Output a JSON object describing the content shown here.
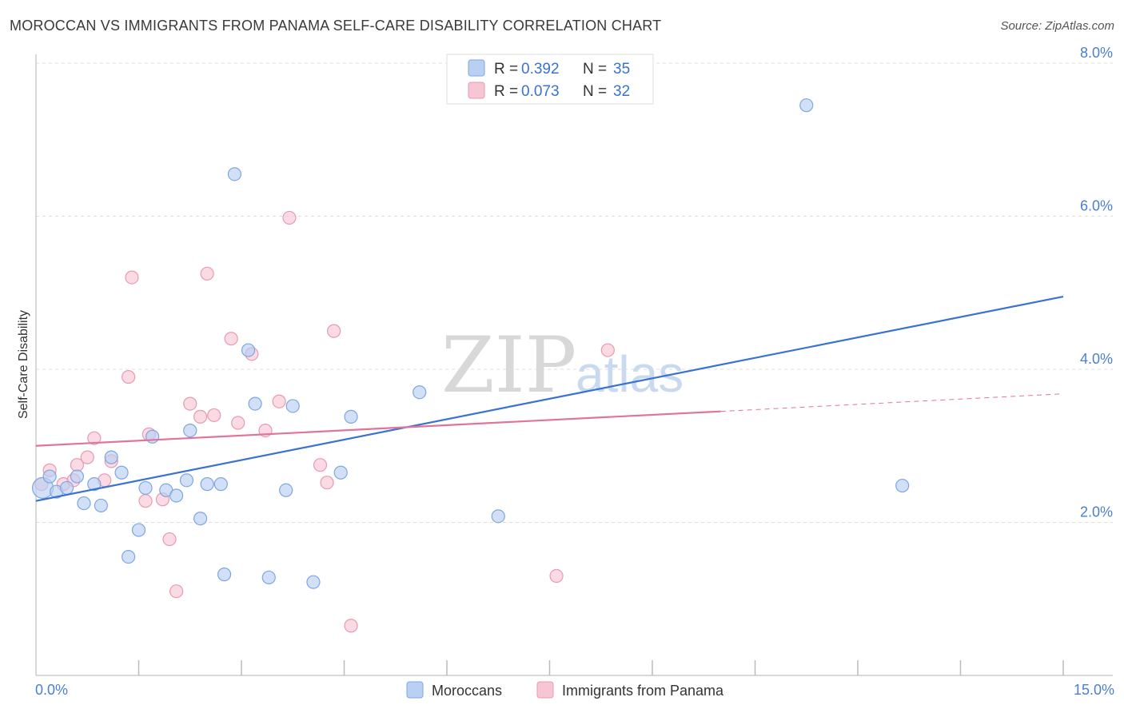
{
  "title": "MOROCCAN VS IMMIGRANTS FROM PANAMA SELF-CARE DISABILITY CORRELATION CHART",
  "source": "Source: ZipAtlas.com",
  "watermark": {
    "zip": "ZIP",
    "atlas": "atlas"
  },
  "colors": {
    "moroccans_fill": "#b9d0f3",
    "moroccans_stroke": "#7ea6e0",
    "moroccans_line": "#3a72cf",
    "panama_fill": "#f7c6d4",
    "panama_stroke": "#e89ab2",
    "panama_line": "#e2739a",
    "tick_label": "#4a7fd4",
    "grid": "#dddddd"
  },
  "legend": {
    "rows": [
      {
        "r_label": "R =",
        "r_value": "0.392",
        "n_label": "N =",
        "n_value": "35"
      },
      {
        "r_label": "R =",
        "r_value": "0.073",
        "n_label": "N =",
        "n_value": "32"
      }
    ]
  },
  "chart_data": {
    "type": "scatter",
    "title": "MOROCCAN VS IMMIGRANTS FROM PANAMA SELF-CARE DISABILITY CORRELATION CHART",
    "xlabel": "",
    "ylabel": "Self-Care Disability",
    "xlim": [
      0,
      15
    ],
    "ylim": [
      0,
      8.4
    ],
    "x_tick_labels": [
      {
        "value": 0,
        "label": "0.0%"
      },
      {
        "value": 15,
        "label": "15.0%"
      }
    ],
    "y_tick_labels": [
      {
        "value": 2,
        "label": "2.0%"
      },
      {
        "value": 4,
        "label": "4.0%"
      },
      {
        "value": 6,
        "label": "6.0%"
      },
      {
        "value": 8,
        "label": "8.0%"
      }
    ],
    "x_minor_ticks": [
      1.5,
      3.0,
      4.5,
      6.0,
      7.5,
      9.0,
      10.5,
      12.0,
      13.5
    ],
    "grid": true,
    "legend_position": "top-center",
    "series": [
      {
        "name": "Moroccans",
        "points": [
          [
            0.1,
            2.45
          ],
          [
            0.2,
            2.6
          ],
          [
            0.3,
            2.4
          ],
          [
            0.45,
            2.45
          ],
          [
            0.6,
            2.6
          ],
          [
            0.7,
            2.25
          ],
          [
            0.85,
            2.5
          ],
          [
            0.95,
            2.22
          ],
          [
            1.1,
            2.85
          ],
          [
            1.25,
            2.65
          ],
          [
            1.35,
            1.55
          ],
          [
            1.5,
            1.9
          ],
          [
            1.6,
            2.45
          ],
          [
            1.7,
            3.12
          ],
          [
            1.9,
            2.42
          ],
          [
            2.05,
            2.35
          ],
          [
            2.2,
            2.55
          ],
          [
            2.25,
            3.2
          ],
          [
            2.4,
            2.05
          ],
          [
            2.5,
            2.5
          ],
          [
            2.7,
            2.5
          ],
          [
            2.75,
            1.32
          ],
          [
            2.9,
            6.55
          ],
          [
            3.1,
            4.25
          ],
          [
            3.2,
            3.55
          ],
          [
            3.4,
            1.28
          ],
          [
            3.65,
            2.42
          ],
          [
            3.75,
            3.52
          ],
          [
            4.05,
            1.22
          ],
          [
            4.45,
            2.65
          ],
          [
            4.6,
            3.38
          ],
          [
            5.6,
            3.7
          ],
          [
            6.75,
            2.08
          ],
          [
            11.25,
            7.45
          ],
          [
            12.65,
            2.48
          ]
        ]
      },
      {
        "name": "Immigrants from Panama",
        "points": [
          [
            0.08,
            2.5
          ],
          [
            0.2,
            2.68
          ],
          [
            0.4,
            2.5
          ],
          [
            0.55,
            2.55
          ],
          [
            0.6,
            2.75
          ],
          [
            0.75,
            2.85
          ],
          [
            0.85,
            3.1
          ],
          [
            1.0,
            2.55
          ],
          [
            1.1,
            2.8
          ],
          [
            1.35,
            3.9
          ],
          [
            1.4,
            5.2
          ],
          [
            1.6,
            2.28
          ],
          [
            1.65,
            3.15
          ],
          [
            1.85,
            2.3
          ],
          [
            1.95,
            1.78
          ],
          [
            2.05,
            1.1
          ],
          [
            2.25,
            3.55
          ],
          [
            2.4,
            3.38
          ],
          [
            2.5,
            5.25
          ],
          [
            2.6,
            3.4
          ],
          [
            2.85,
            4.4
          ],
          [
            2.95,
            3.3
          ],
          [
            3.15,
            4.2
          ],
          [
            3.35,
            3.2
          ],
          [
            3.55,
            3.58
          ],
          [
            3.7,
            5.98
          ],
          [
            4.15,
            2.75
          ],
          [
            4.25,
            2.52
          ],
          [
            4.35,
            4.5
          ],
          [
            4.6,
            0.65
          ],
          [
            7.6,
            1.3
          ],
          [
            8.35,
            4.25
          ]
        ]
      }
    ],
    "trendlines": [
      {
        "series": "Moroccans",
        "x": [
          0,
          15
        ],
        "y": [
          2.28,
          4.95
        ],
        "style": "solid"
      },
      {
        "series": "Immigrants from Panama",
        "x": [
          0,
          10.0
        ],
        "y": [
          3.0,
          3.45
        ],
        "style": "solid"
      },
      {
        "series": "Immigrants from Panama",
        "x": [
          10.0,
          15
        ],
        "y": [
          3.45,
          3.68
        ],
        "style": "dashed"
      }
    ]
  }
}
